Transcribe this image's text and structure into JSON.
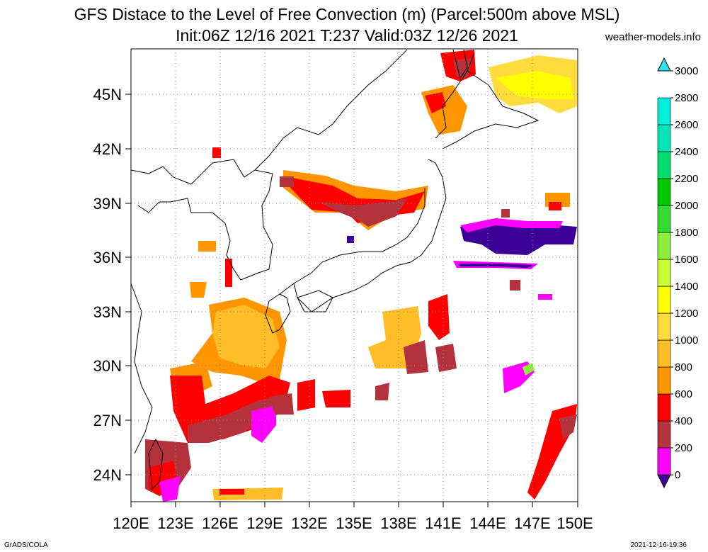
{
  "header": {
    "title": "GFS Distace to the Level of Free Convection (m) (Parcel:500m above MSL)",
    "subtitle": "Init:06Z 12/16 2021 T:237 Valid:03Z 12/26 2021",
    "source": "weather-models.info"
  },
  "footer": {
    "left": "GrADS/COLA",
    "right": "2021-12-16-19:36"
  },
  "map": {
    "lon_range": [
      120,
      150
    ],
    "lat_range": [
      22.5,
      47.5
    ],
    "x_ticks": [
      "120E",
      "123E",
      "126E",
      "129E",
      "132E",
      "135E",
      "138E",
      "141E",
      "144E",
      "147E",
      "150E"
    ],
    "y_ticks": [
      "24N",
      "27N",
      "30N",
      "33N",
      "36N",
      "39N",
      "42N",
      "45N"
    ],
    "grid": "dotted"
  },
  "colorbar": {
    "labels": [
      "0",
      "200",
      "400",
      "600",
      "800",
      "1000",
      "1200",
      "1400",
      "1600",
      "1800",
      "2000",
      "2200",
      "2400",
      "2600",
      "2800",
      "3000"
    ],
    "colors": [
      "#3c0096",
      "#ff00ff",
      "#b4323c",
      "#ff0000",
      "#ff9600",
      "#ffbe28",
      "#ffdc3c",
      "#ffff00",
      "#c8ff32",
      "#8cf03c",
      "#32dc32",
      "#00c800",
      "#00dc6e",
      "#00e6b4",
      "#00f0dc",
      "#28e6f0"
    ]
  }
}
